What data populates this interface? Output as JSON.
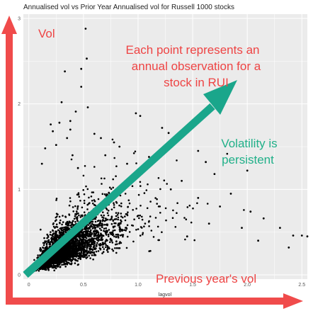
{
  "chart_data": {
    "type": "scatter",
    "title": "Annualised vol vs Prior Year Annualised vol for Russell 1000 stocks",
    "xlabel": "lagvol",
    "ylabel": "",
    "xlim": [
      -0.05,
      2.55
    ],
    "ylim": [
      -0.05,
      3.05
    ],
    "x_ticks": [
      "0",
      "0.5",
      "1.0",
      "1.5",
      "2.0",
      "2.5"
    ],
    "x_tick_values": [
      0,
      0.5,
      1.0,
      1.5,
      2.0,
      2.5
    ],
    "y_ticks": [
      "0",
      "1",
      "2",
      "3"
    ],
    "y_tick_values": [
      0,
      1,
      2,
      3
    ],
    "grid": true,
    "legend": "none",
    "point_color": "#000000",
    "panel_color": "#ebebeb",
    "outlier_points": [
      [
        0.52,
        2.88
      ],
      [
        0.53,
        2.53
      ],
      [
        0.33,
        2.38
      ],
      [
        0.48,
        2.41
      ],
      [
        0.48,
        2.2
      ],
      [
        0.3,
        2.02
      ],
      [
        0.43,
        1.91
      ],
      [
        0.54,
        1.96
      ],
      [
        0.2,
        1.76
      ],
      [
        0.28,
        1.78
      ],
      [
        0.38,
        1.8
      ],
      [
        0.22,
        1.68
      ],
      [
        0.38,
        1.7
      ],
      [
        0.6,
        1.65
      ],
      [
        0.66,
        1.6
      ],
      [
        0.83,
        1.5
      ],
      [
        0.98,
        1.89
      ],
      [
        1.02,
        1.86
      ],
      [
        1.22,
        1.72
      ],
      [
        1.28,
        1.66
      ],
      [
        1.55,
        1.45
      ],
      [
        1.62,
        1.32
      ],
      [
        1.7,
        1.18
      ],
      [
        2.0,
        1.22
      ],
      [
        1.85,
        0.95
      ],
      [
        2.03,
        0.74
      ],
      [
        2.15,
        0.66
      ],
      [
        2.3,
        0.55
      ],
      [
        2.42,
        0.46
      ],
      [
        2.5,
        0.46
      ],
      [
        2.38,
        0.32
      ],
      [
        2.55,
        0.45
      ],
      [
        1.4,
        1.1
      ],
      [
        1.3,
        1.0
      ],
      [
        1.55,
        0.9
      ],
      [
        1.75,
        0.8
      ],
      [
        1.95,
        0.55
      ],
      [
        2.1,
        0.4
      ],
      [
        1.65,
        0.6
      ],
      [
        1.45,
        0.45
      ],
      [
        0.15,
        1.48
      ],
      [
        0.25,
        1.52
      ],
      [
        0.4,
        1.4
      ],
      [
        0.7,
        1.4
      ],
      [
        0.9,
        1.3
      ],
      [
        1.1,
        1.38
      ],
      [
        0.78,
        1.55
      ],
      [
        0.35,
        1.6
      ],
      [
        0.12,
        1.3
      ],
      [
        0.45,
        1.25
      ]
    ],
    "cluster": {
      "description_values": "dense cloud of annual observations concentrated near lagvol 0.1-0.6, vol 0.1-0.6, spreading toward (1.2, 1.2)",
      "center": [
        0.3,
        0.28
      ],
      "count": 3000
    }
  },
  "annotations": {
    "vol_label": "Vol",
    "each_point_line1": "Each point represents an",
    "each_point_line2": "annual observation for a",
    "each_point_line3": "stock in RUI",
    "volatility_line1": "Volatility is",
    "volatility_line2": "persistent",
    "prev_year_label": "Previous year's vol"
  },
  "colors": {
    "red_arrow": "#f04b4b",
    "teal_arrow": "#1aa68b",
    "red_text": "#ee4444",
    "teal_text": "#21b089"
  }
}
